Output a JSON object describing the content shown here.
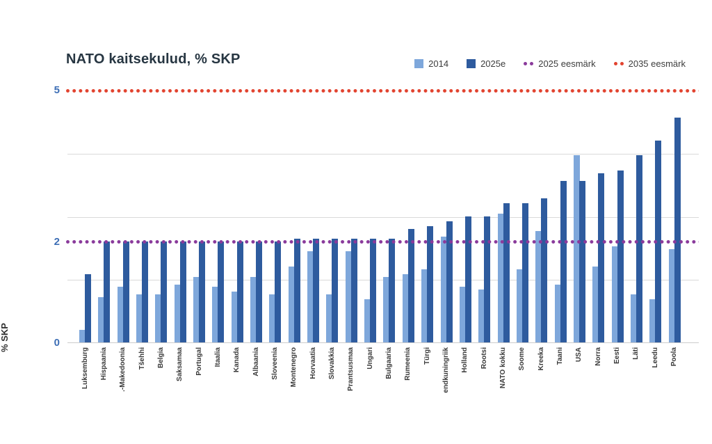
{
  "title": "NATO kaitsekulud, % SKP",
  "y_axis_title": "% SKP",
  "colors": {
    "bar_2014": "#7EA7DB",
    "bar_2025e": "#2E5B9E",
    "target_2025": "#8A3A9B",
    "target_2035": "#E2432F",
    "gridline": "#D9D9D9",
    "axis_tick_blue": "#3D6EB5",
    "title_text": "#273642"
  },
  "legend": [
    {
      "label": "2014",
      "marker": "swatch",
      "color": "#7EA7DB"
    },
    {
      "label": "2025e",
      "marker": "swatch",
      "color": "#2E5B9E"
    },
    {
      "label": "2025 eesmärk",
      "marker": "dots",
      "color": "#8A3A9B"
    },
    {
      "label": "2035 eesmärk",
      "marker": "dots",
      "color": "#E2432F"
    }
  ],
  "chart_data": {
    "type": "bar",
    "title": "NATO kaitsekulud, % SKP",
    "ylabel": "% SKP",
    "xlabel": "",
    "ylim": [
      0,
      5
    ],
    "grid": true,
    "gridlines": [
      1.25,
      2.5,
      3.75
    ],
    "yticks_labeled": [
      {
        "value": 0,
        "label": "0"
      },
      {
        "value": 2,
        "label": "2"
      },
      {
        "value": 5,
        "label": "5"
      }
    ],
    "legend_position": "top-right",
    "categories": [
      "Luksemburg",
      "Hispaania",
      ".-Makedoonia",
      "Tšehhi",
      "Belgia",
      "Saksamaa",
      "Portugal",
      "Itaalia",
      "Kanada",
      "Albaania",
      "Sloveenia",
      "Montenegro",
      "Horvaatia",
      "Slovakkia",
      "Prantsusmaa",
      "Ungari",
      "Bulgaaria",
      "Rumeenia",
      "Türgi",
      "endkuningriik",
      "Holland",
      "Rootsi",
      "NATO kokku",
      "Soome",
      "Kreeka",
      "Taani",
      "USA",
      "Norra",
      "Eesti",
      "Läti",
      "Leedu",
      "Poola"
    ],
    "series": [
      {
        "name": "2014",
        "color": "#7EA7DB",
        "values": [
          0.25,
          0.9,
          1.1,
          0.95,
          0.95,
          1.15,
          1.3,
          1.1,
          1.0,
          1.3,
          0.95,
          1.5,
          1.8,
          0.95,
          1.8,
          0.85,
          1.3,
          1.35,
          1.45,
          2.1,
          1.1,
          1.05,
          2.55,
          1.45,
          2.2,
          1.15,
          3.7,
          1.5,
          1.9,
          0.95,
          0.85,
          1.85
        ]
      },
      {
        "name": "2025e",
        "color": "#2E5B9E",
        "values": [
          1.35,
          2.0,
          2.0,
          2.0,
          2.0,
          2.0,
          2.0,
          2.0,
          2.0,
          2.0,
          2.0,
          2.05,
          2.05,
          2.05,
          2.05,
          2.05,
          2.05,
          2.25,
          2.3,
          2.4,
          2.5,
          2.5,
          2.75,
          2.75,
          2.85,
          3.2,
          3.2,
          3.35,
          3.4,
          3.7,
          4.0,
          4.45
        ]
      }
    ],
    "target_lines": [
      {
        "label": "2025 eesmärk",
        "value": 2,
        "color": "#8A3A9B"
      },
      {
        "label": "2035 eesmärk",
        "value": 5,
        "color": "#E2432F"
      }
    ]
  }
}
